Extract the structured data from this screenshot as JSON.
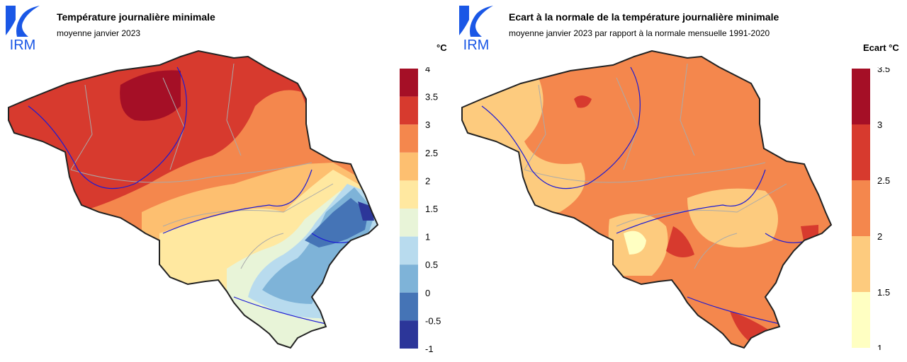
{
  "logo": {
    "text": "IRM",
    "colors": [
      "#1a57e6",
      "#0a3fc7"
    ]
  },
  "panels": [
    {
      "title": "Température journalière minimale",
      "subtitle": "moyenne janvier 2023",
      "unit": "°C",
      "legend": {
        "ticks": [
          "4",
          "3.5",
          "3",
          "2.5",
          "2",
          "1.5",
          "1",
          "0.5",
          "0",
          "-0.5",
          "-1"
        ],
        "colors": [
          "#a50f26",
          "#d73a2e",
          "#f4874d",
          "#fdbf70",
          "#ffe8a0",
          "#e8f4d8",
          "#b8dbee",
          "#7eb3d8",
          "#4574b6",
          "#2c3699"
        ]
      },
      "map_palette": {
        "north": "#d73a2e",
        "hot": "#a50f26",
        "centre": "#f4874d",
        "south": "#fdbf70",
        "pale": "#ffe8a0",
        "mint": "#e8f4d8",
        "light-blue": "#b8dbee",
        "mid-blue": "#7eb3d8",
        "blue": "#4574b6",
        "dark-blue": "#2c3699"
      }
    },
    {
      "title": "Ecart à la normale de la température journalière minimale",
      "subtitle": "moyenne janvier 2023 par rapport à la normale mensuelle 1991-2020",
      "unit": "Ecart °C",
      "legend": {
        "ticks": [
          "3.5",
          "3",
          "2.5",
          "2",
          "1.5",
          "1"
        ],
        "colors": [
          "#a50f26",
          "#d73a2e",
          "#f4874d",
          "#fdcb7e",
          "#ffffc2"
        ]
      },
      "map_palette": {
        "base": "#f4874d",
        "cool": "#fdcb7e",
        "pale": "#ffffc2",
        "warm": "#d73a2e"
      }
    }
  ]
}
